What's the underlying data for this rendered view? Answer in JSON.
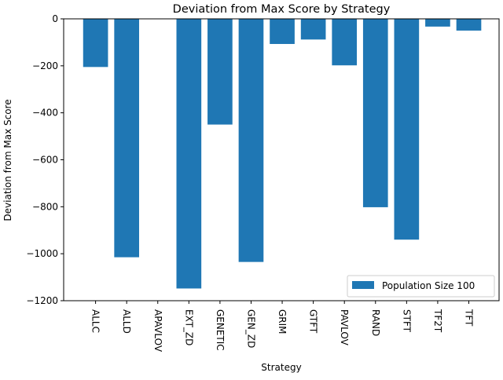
{
  "chart_data": {
    "type": "bar",
    "title": "Deviation from Max Score by Strategy",
    "xlabel": "Strategy",
    "ylabel": "Deviation from Max Score",
    "categories": [
      "ALLC",
      "ALLD",
      "APAVLOV",
      "EXT_ZD",
      "GENETIC",
      "GEN_ZD",
      "GRIM",
      "GTFT",
      "PAVLOV",
      "RAND",
      "STFT",
      "TF2T",
      "TFT"
    ],
    "series": [
      {
        "name": "Population Size 100",
        "values": [
          -205,
          -1015,
          0,
          -1148,
          -450,
          -1035,
          -107,
          -88,
          -198,
          -802,
          -940,
          -33,
          -50
        ],
        "color": "#1f77b4"
      }
    ],
    "ylim": [
      -1200,
      0
    ],
    "yticks": [
      0,
      -200,
      -400,
      -600,
      -800,
      -1000,
      -1200
    ],
    "ytick_labels": [
      "0",
      "−200",
      "−400",
      "−600",
      "−800",
      "−1000",
      "−1200"
    ],
    "xtick_rotation": 90,
    "grid": false,
    "legend_position": "lower-right"
  }
}
